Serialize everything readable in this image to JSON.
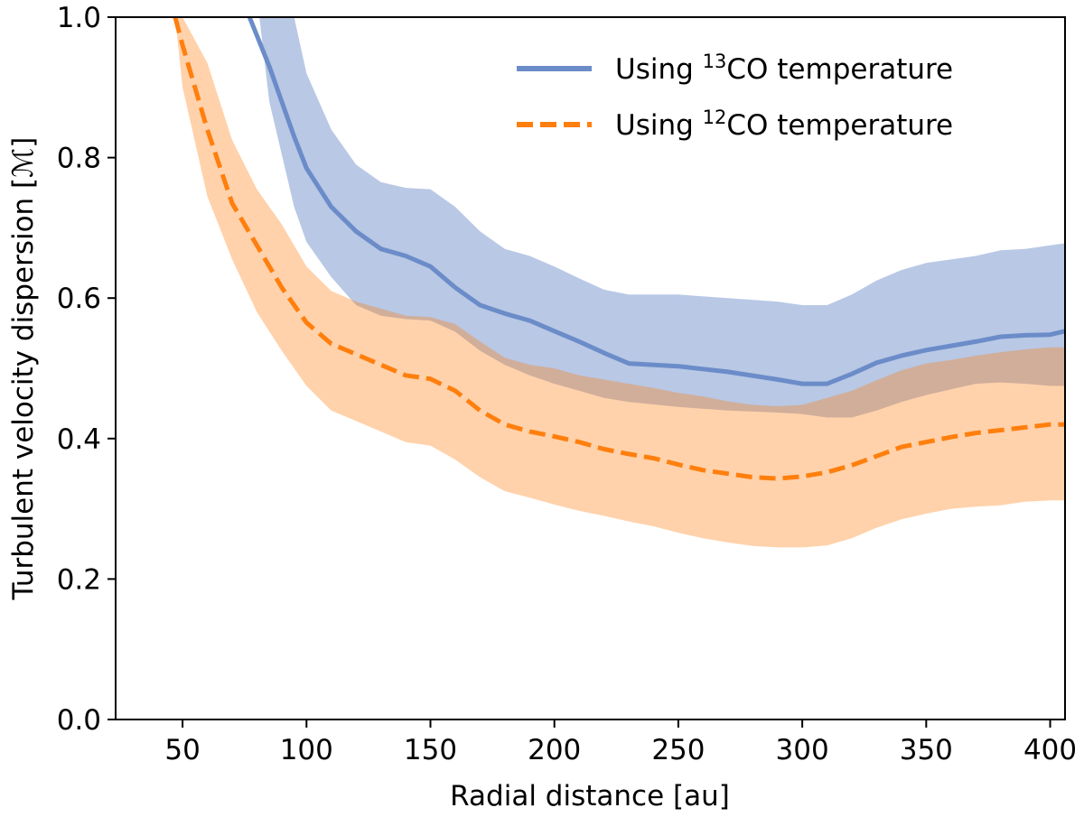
{
  "chart_data": {
    "type": "line",
    "xlabel": "Radial distance [au]",
    "ylabel": "Turbulent velocity dispersion [ℳ]",
    "xlim": [
      23,
      406
    ],
    "ylim": [
      0.0,
      1.0
    ],
    "xticks": [
      50,
      100,
      150,
      200,
      250,
      300,
      350,
      400
    ],
    "yticks": [
      0.0,
      0.2,
      0.4,
      0.6,
      0.8,
      1.0
    ],
    "xtick_labels": [
      "50",
      "100",
      "150",
      "200",
      "250",
      "300",
      "350",
      "400"
    ],
    "ytick_labels": [
      "0.0",
      "0.2",
      "0.4",
      "0.6",
      "0.8",
      "1.0"
    ],
    "grid": false,
    "legend_position": "top-right",
    "series": [
      {
        "legend_prefix": "Using ",
        "legend_sup": "13",
        "legend_suffix": "CO temperature",
        "color": "#6b8cc8",
        "line_style": "solid",
        "x": [
          77,
          85,
          95,
          100,
          110,
          120,
          130,
          140,
          150,
          160,
          170,
          180,
          190,
          200,
          210,
          220,
          230,
          250,
          270,
          290,
          300,
          310,
          320,
          330,
          340,
          350,
          360,
          370,
          380,
          390,
          400,
          406
        ],
        "y": [
          1.0,
          0.93,
          0.83,
          0.785,
          0.73,
          0.695,
          0.67,
          0.66,
          0.645,
          0.615,
          0.59,
          0.578,
          0.568,
          0.553,
          0.538,
          0.522,
          0.507,
          0.503,
          0.495,
          0.484,
          0.478,
          0.478,
          0.492,
          0.508,
          0.518,
          0.526,
          0.532,
          0.538,
          0.545,
          0.547,
          0.548,
          0.553
        ],
        "lower": [
          1.12,
          0.88,
          0.73,
          0.68,
          0.63,
          0.59,
          0.575,
          0.57,
          0.568,
          0.552,
          0.525,
          0.505,
          0.49,
          0.478,
          0.468,
          0.458,
          0.452,
          0.445,
          0.44,
          0.437,
          0.435,
          0.43,
          0.43,
          0.44,
          0.452,
          0.462,
          0.47,
          0.478,
          0.48,
          0.478,
          0.475,
          0.475
        ],
        "upper": [
          1.12,
          1.12,
          1.0,
          0.92,
          0.84,
          0.79,
          0.765,
          0.757,
          0.755,
          0.73,
          0.695,
          0.67,
          0.66,
          0.645,
          0.628,
          0.612,
          0.605,
          0.605,
          0.6,
          0.595,
          0.59,
          0.59,
          0.605,
          0.625,
          0.64,
          0.65,
          0.655,
          0.66,
          0.668,
          0.67,
          0.675,
          0.678
        ]
      },
      {
        "legend_prefix": "Using ",
        "legend_sup": "12",
        "legend_suffix": "CO temperature",
        "color": "#ff7f0e",
        "line_style": "dashed",
        "x": [
          47,
          50,
          60,
          70,
          80,
          90,
          100,
          110,
          120,
          130,
          140,
          150,
          160,
          170,
          180,
          190,
          200,
          210,
          220,
          230,
          240,
          250,
          260,
          270,
          280,
          290,
          300,
          310,
          320,
          330,
          340,
          350,
          360,
          370,
          380,
          390,
          400,
          406
        ],
        "y": [
          1.0,
          0.96,
          0.84,
          0.735,
          0.675,
          0.615,
          0.565,
          0.535,
          0.52,
          0.505,
          0.49,
          0.485,
          0.468,
          0.44,
          0.42,
          0.41,
          0.403,
          0.395,
          0.385,
          0.378,
          0.372,
          0.363,
          0.355,
          0.35,
          0.345,
          0.343,
          0.346,
          0.352,
          0.362,
          0.375,
          0.388,
          0.395,
          0.402,
          0.408,
          0.412,
          0.416,
          0.42,
          0.42
        ],
        "lower": [
          1.0,
          0.9,
          0.745,
          0.655,
          0.58,
          0.525,
          0.475,
          0.44,
          0.425,
          0.41,
          0.395,
          0.39,
          0.37,
          0.345,
          0.325,
          0.316,
          0.306,
          0.297,
          0.29,
          0.282,
          0.275,
          0.266,
          0.258,
          0.252,
          0.247,
          0.245,
          0.245,
          0.248,
          0.258,
          0.273,
          0.285,
          0.293,
          0.3,
          0.303,
          0.305,
          0.31,
          0.312,
          0.312
        ],
        "upper": [
          1.0,
          1.0,
          0.935,
          0.825,
          0.755,
          0.705,
          0.645,
          0.61,
          0.595,
          0.585,
          0.575,
          0.573,
          0.563,
          0.538,
          0.515,
          0.505,
          0.5,
          0.49,
          0.484,
          0.478,
          0.472,
          0.465,
          0.46,
          0.453,
          0.448,
          0.446,
          0.448,
          0.458,
          0.468,
          0.483,
          0.497,
          0.507,
          0.512,
          0.518,
          0.523,
          0.527,
          0.53,
          0.53
        ]
      }
    ]
  }
}
